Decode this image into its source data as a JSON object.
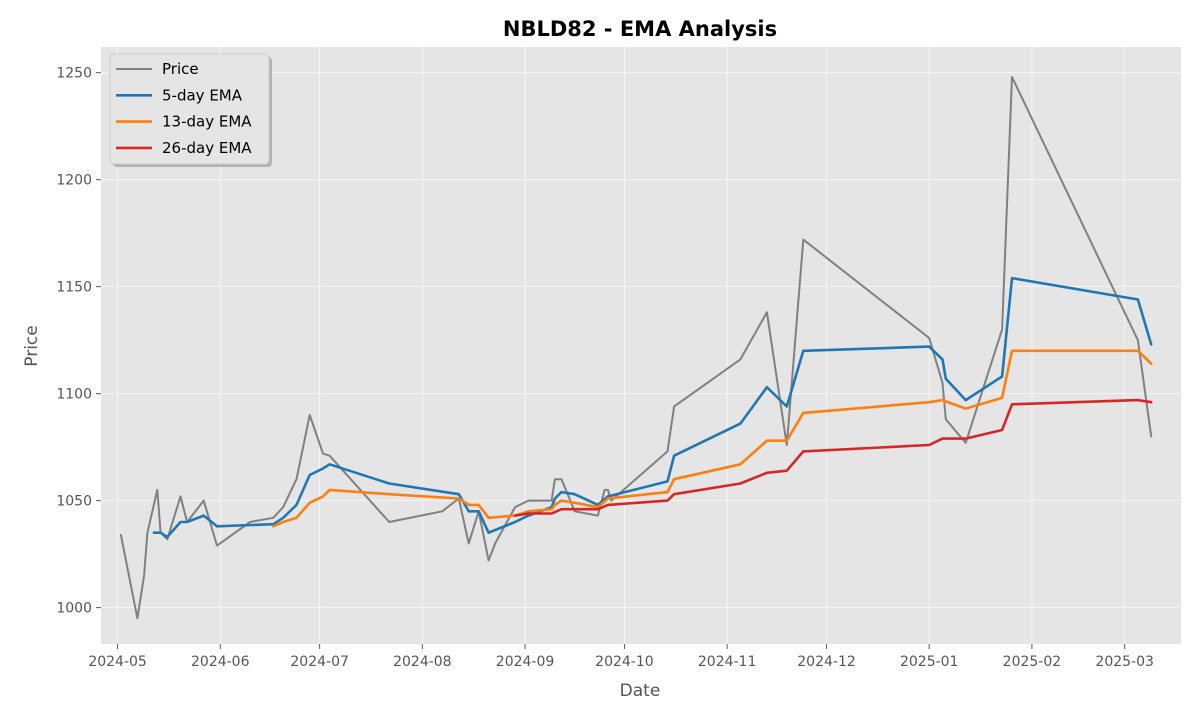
{
  "chart_data": {
    "type": "line",
    "title": "NBLD82 - EMA Analysis",
    "xlabel": "Date",
    "ylabel": "Price",
    "x_type": "date",
    "xlim": [
      "2024-04-26",
      "2025-03-18"
    ],
    "ylim": [
      983,
      1262
    ],
    "x_ticks": [
      "2024-05-01",
      "2024-06-01",
      "2024-07-01",
      "2024-08-01",
      "2024-09-01",
      "2024-10-01",
      "2024-11-01",
      "2024-12-01",
      "2025-01-01",
      "2025-02-01",
      "2025-03-01"
    ],
    "x_tick_labels": [
      "2024-05",
      "2024-06",
      "2024-07",
      "2024-08",
      "2024-09",
      "2024-10",
      "2024-11",
      "2024-12",
      "2025-01",
      "2025-02",
      "2025-03"
    ],
    "y_ticks": [
      1000,
      1050,
      1100,
      1150,
      1200,
      1250
    ],
    "y_tick_labels": [
      "1000",
      "1050",
      "1100",
      "1150",
      "1200",
      "1250"
    ],
    "grid": true,
    "legend_position": "top-left",
    "series": [
      {
        "name": "Price",
        "color": "#808080",
        "points": [
          [
            "2024-05-02",
            1034
          ],
          [
            "2024-05-07",
            995
          ],
          [
            "2024-05-09",
            1015
          ],
          [
            "2024-05-10",
            1035
          ],
          [
            "2024-05-13",
            1055
          ],
          [
            "2024-05-14",
            1035
          ],
          [
            "2024-05-16",
            1032
          ],
          [
            "2024-05-20",
            1052
          ],
          [
            "2024-05-22",
            1040
          ],
          [
            "2024-05-27",
            1050
          ],
          [
            "2024-05-31",
            1029
          ],
          [
            "2024-06-10",
            1040
          ],
          [
            "2024-06-17",
            1042
          ],
          [
            "2024-06-20",
            1047
          ],
          [
            "2024-06-24",
            1060
          ],
          [
            "2024-06-28",
            1090
          ],
          [
            "2024-07-02",
            1072
          ],
          [
            "2024-07-04",
            1071
          ],
          [
            "2024-07-22",
            1040
          ],
          [
            "2024-08-07",
            1045
          ],
          [
            "2024-08-12",
            1051
          ],
          [
            "2024-08-15",
            1030
          ],
          [
            "2024-08-18",
            1045
          ],
          [
            "2024-08-21",
            1022
          ],
          [
            "2024-08-23",
            1030
          ],
          [
            "2024-08-29",
            1047
          ],
          [
            "2024-09-02",
            1050
          ],
          [
            "2024-09-09",
            1050
          ],
          [
            "2024-09-10",
            1060
          ],
          [
            "2024-09-12",
            1060
          ],
          [
            "2024-09-16",
            1045
          ],
          [
            "2024-09-23",
            1043
          ],
          [
            "2024-09-25",
            1055
          ],
          [
            "2024-09-26",
            1055
          ],
          [
            "2024-09-27",
            1050
          ],
          [
            "2024-10-14",
            1073
          ],
          [
            "2024-10-16",
            1094
          ],
          [
            "2024-11-05",
            1116
          ],
          [
            "2024-11-13",
            1138
          ],
          [
            "2024-11-19",
            1076
          ],
          [
            "2024-11-24",
            1172
          ],
          [
            "2025-01-01",
            1126
          ],
          [
            "2025-01-05",
            1105
          ],
          [
            "2025-01-06",
            1088
          ],
          [
            "2025-01-12",
            1077
          ],
          [
            "2025-01-23",
            1130
          ],
          [
            "2025-01-26",
            1248
          ],
          [
            "2025-03-05",
            1125
          ],
          [
            "2025-03-09",
            1080
          ]
        ]
      },
      {
        "name": "5-day EMA",
        "color": "#1f77b4",
        "points": [
          [
            "2024-05-12",
            1035
          ],
          [
            "2024-05-14",
            1035
          ],
          [
            "2024-05-16",
            1033
          ],
          [
            "2024-05-20",
            1040
          ],
          [
            "2024-05-22",
            1040
          ],
          [
            "2024-05-27",
            1043
          ],
          [
            "2024-05-31",
            1038
          ],
          [
            "2024-06-17",
            1039
          ],
          [
            "2024-06-20",
            1042
          ],
          [
            "2024-06-24",
            1048
          ],
          [
            "2024-06-28",
            1062
          ],
          [
            "2024-07-02",
            1065
          ],
          [
            "2024-07-04",
            1067
          ],
          [
            "2024-07-22",
            1058
          ],
          [
            "2024-08-12",
            1053
          ],
          [
            "2024-08-15",
            1045
          ],
          [
            "2024-08-18",
            1045
          ],
          [
            "2024-08-21",
            1035
          ],
          [
            "2024-08-29",
            1040
          ],
          [
            "2024-09-02",
            1043
          ],
          [
            "2024-09-09",
            1047
          ],
          [
            "2024-09-10",
            1051
          ],
          [
            "2024-09-12",
            1054
          ],
          [
            "2024-09-16",
            1053
          ],
          [
            "2024-09-23",
            1048
          ],
          [
            "2024-09-26",
            1052
          ],
          [
            "2024-10-14",
            1059
          ],
          [
            "2024-10-16",
            1071
          ],
          [
            "2024-11-05",
            1086
          ],
          [
            "2024-11-13",
            1103
          ],
          [
            "2024-11-19",
            1094
          ],
          [
            "2024-11-24",
            1120
          ],
          [
            "2025-01-01",
            1122
          ],
          [
            "2025-01-05",
            1116
          ],
          [
            "2025-01-06",
            1107
          ],
          [
            "2025-01-12",
            1097
          ],
          [
            "2025-01-23",
            1108
          ],
          [
            "2025-01-26",
            1154
          ],
          [
            "2025-03-05",
            1144
          ],
          [
            "2025-03-09",
            1123
          ]
        ]
      },
      {
        "name": "13-day EMA",
        "color": "#ff7f0e",
        "points": [
          [
            "2024-06-17",
            1038
          ],
          [
            "2024-06-20",
            1040
          ],
          [
            "2024-06-24",
            1042
          ],
          [
            "2024-06-28",
            1049
          ],
          [
            "2024-07-02",
            1052
          ],
          [
            "2024-07-04",
            1055
          ],
          [
            "2024-07-22",
            1053
          ],
          [
            "2024-08-12",
            1051
          ],
          [
            "2024-08-15",
            1048
          ],
          [
            "2024-08-18",
            1048
          ],
          [
            "2024-08-21",
            1042
          ],
          [
            "2024-08-29",
            1043
          ],
          [
            "2024-09-02",
            1045
          ],
          [
            "2024-09-09",
            1046
          ],
          [
            "2024-09-10",
            1048
          ],
          [
            "2024-09-12",
            1050
          ],
          [
            "2024-09-16",
            1049
          ],
          [
            "2024-09-23",
            1047
          ],
          [
            "2024-09-26",
            1051
          ],
          [
            "2024-10-14",
            1054
          ],
          [
            "2024-10-16",
            1060
          ],
          [
            "2024-11-05",
            1067
          ],
          [
            "2024-11-13",
            1078
          ],
          [
            "2024-11-19",
            1078
          ],
          [
            "2024-11-24",
            1091
          ],
          [
            "2025-01-01",
            1096
          ],
          [
            "2025-01-05",
            1097
          ],
          [
            "2025-01-12",
            1093
          ],
          [
            "2025-01-23",
            1098
          ],
          [
            "2025-01-26",
            1120
          ],
          [
            "2025-03-05",
            1120
          ],
          [
            "2025-03-09",
            1114
          ]
        ]
      },
      {
        "name": "26-day EMA",
        "color": "#d62728",
        "points": [
          [
            "2024-08-29",
            1043
          ],
          [
            "2024-09-02",
            1044
          ],
          [
            "2024-09-09",
            1044
          ],
          [
            "2024-09-12",
            1046
          ],
          [
            "2024-09-23",
            1046
          ],
          [
            "2024-09-26",
            1048
          ],
          [
            "2024-10-14",
            1050
          ],
          [
            "2024-10-16",
            1053
          ],
          [
            "2024-11-05",
            1058
          ],
          [
            "2024-11-13",
            1063
          ],
          [
            "2024-11-19",
            1064
          ],
          [
            "2024-11-24",
            1073
          ],
          [
            "2025-01-01",
            1076
          ],
          [
            "2025-01-05",
            1079
          ],
          [
            "2025-01-12",
            1079
          ],
          [
            "2025-01-23",
            1083
          ],
          [
            "2025-01-26",
            1095
          ],
          [
            "2025-03-05",
            1097
          ],
          [
            "2025-03-09",
            1096
          ]
        ]
      }
    ]
  }
}
